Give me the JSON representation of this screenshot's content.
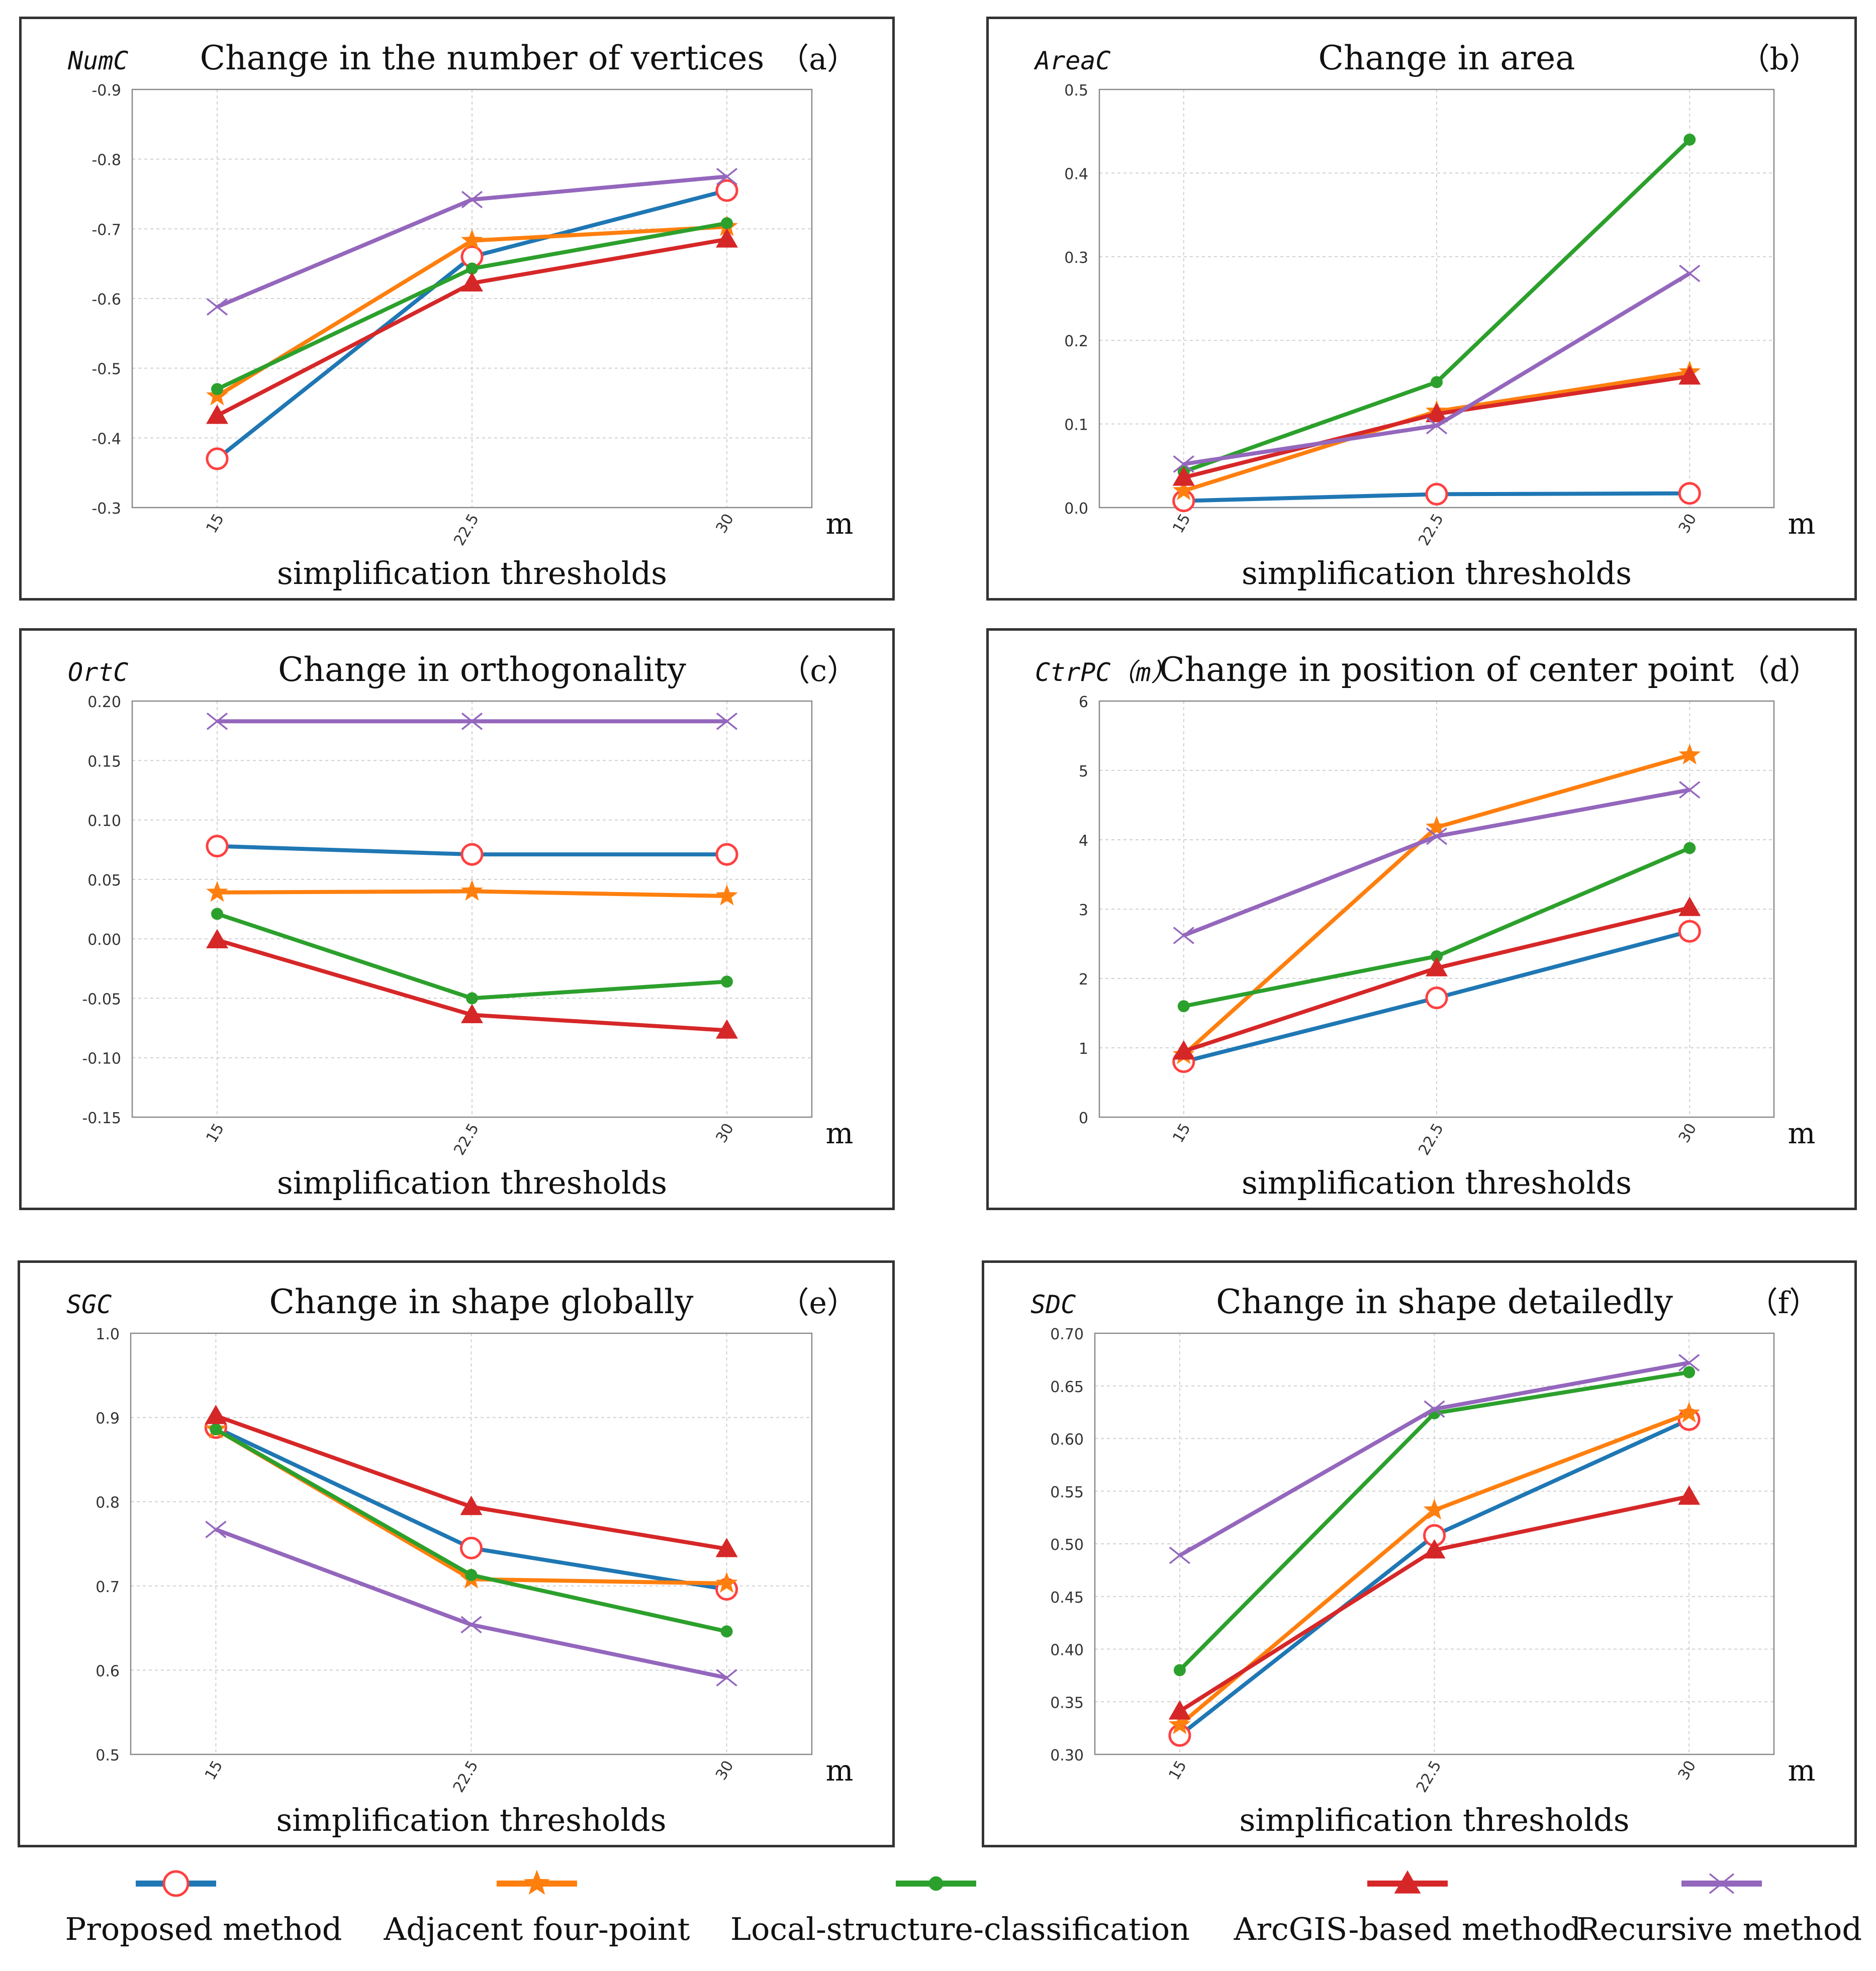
{
  "common": {
    "xlabel": "simplification thresholds",
    "unit": "m",
    "tick_labels": [
      "15",
      "22.5",
      "30"
    ]
  },
  "legend": [
    {
      "name": "Proposed method",
      "color": "#1f77b4",
      "marker": "open-circle",
      "marker_color": "#ff4040"
    },
    {
      "name": "Adjacent four-point",
      "color": "#ff7f0e",
      "marker": "star",
      "marker_color": "#ff7f0e"
    },
    {
      "name": "Local-structure-classification",
      "color": "#2ca02c",
      "marker": "dot",
      "marker_color": "#2ca02c"
    },
    {
      "name": "ArcGIS-based  method",
      "color": "#d62728",
      "marker": "triangle",
      "marker_color": "#d62728"
    },
    {
      "name": "Recursive method",
      "color": "#9467bd",
      "marker": "x",
      "marker_color": "#9467bd"
    }
  ],
  "chart_data": [
    {
      "type": "line",
      "letter": "（a）",
      "ylabel": "NumC",
      "title": "Change in the number of vertices",
      "ylim": [
        -0.3,
        -0.9
      ],
      "yticks": [
        -0.3,
        -0.4,
        -0.5,
        -0.6,
        -0.7,
        -0.8,
        -0.9
      ],
      "ytick_labels": [
        "-0.3",
        "-0.4",
        "-0.5",
        "-0.6",
        "-0.7",
        "-0.8",
        "-0.9"
      ],
      "x": [
        15,
        22.5,
        30
      ],
      "series": [
        {
          "name": "Proposed method",
          "values": [
            -0.37,
            -0.66,
            -0.755
          ]
        },
        {
          "name": "Adjacent four-point",
          "values": [
            -0.46,
            -0.683,
            -0.703
          ]
        },
        {
          "name": "Local-structure-classification",
          "values": [
            -0.47,
            -0.643,
            -0.708
          ]
        },
        {
          "name": "ArcGIS-based  method",
          "values": [
            -0.432,
            -0.622,
            -0.685
          ]
        },
        {
          "name": "Recursive method",
          "values": [
            -0.588,
            -0.742,
            -0.775
          ]
        }
      ]
    },
    {
      "type": "line",
      "letter": "（b）",
      "ylabel": "AreaC",
      "title": "Change in area",
      "ylim": [
        0,
        0.5
      ],
      "yticks": [
        0,
        0.1,
        0.2,
        0.3,
        0.4,
        0.5
      ],
      "ytick_labels": [
        "0.0",
        "0.1",
        "0.2",
        "0.3",
        "0.4",
        "0.5"
      ],
      "x": [
        15,
        22.5,
        30
      ],
      "series": [
        {
          "name": "Proposed method",
          "values": [
            0.008,
            0.016,
            0.017
          ]
        },
        {
          "name": "Adjacent four-point",
          "values": [
            0.02,
            0.115,
            0.162
          ]
        },
        {
          "name": "Local-structure-classification",
          "values": [
            0.043,
            0.15,
            0.44
          ]
        },
        {
          "name": "ArcGIS-based  method",
          "values": [
            0.036,
            0.112,
            0.157
          ]
        },
        {
          "name": "Recursive method",
          "values": [
            0.052,
            0.098,
            0.28
          ]
        }
      ]
    },
    {
      "type": "line",
      "letter": "（c）",
      "ylabel": "OrtC",
      "title": "Change in orthogonality",
      "ylim": [
        -0.15,
        0.2
      ],
      "yticks": [
        -0.15,
        -0.1,
        -0.05,
        0,
        0.05,
        0.1,
        0.15,
        0.2
      ],
      "ytick_labels": [
        "-0.15",
        "-0.10",
        "-0.05",
        "0.00",
        "0.05",
        "0.10",
        "0.15",
        "0.20"
      ],
      "x": [
        15,
        22.5,
        30
      ],
      "series": [
        {
          "name": "Proposed method",
          "values": [
            0.078,
            0.071,
            0.071
          ]
        },
        {
          "name": "Adjacent four-point",
          "values": [
            0.039,
            0.04,
            0.036
          ]
        },
        {
          "name": "Local-structure-classification",
          "values": [
            0.021,
            -0.05,
            -0.036
          ]
        },
        {
          "name": "ArcGIS-based  method",
          "values": [
            -0.001,
            -0.064,
            -0.077
          ]
        },
        {
          "name": "Recursive method",
          "values": [
            0.183,
            0.183,
            0.183
          ]
        }
      ]
    },
    {
      "type": "line",
      "letter": "（d）",
      "ylabel": "CtrPC（m）",
      "title": "Change in position of center point",
      "ylim": [
        0,
        6
      ],
      "yticks": [
        0,
        1,
        2,
        3,
        4,
        5,
        6
      ],
      "ytick_labels": [
        "0",
        "1",
        "2",
        "3",
        "4",
        "5",
        "6"
      ],
      "x": [
        15,
        22.5,
        30
      ],
      "series": [
        {
          "name": "Proposed method",
          "values": [
            0.8,
            1.72,
            2.68
          ]
        },
        {
          "name": "Adjacent four-point",
          "values": [
            0.9,
            4.18,
            5.22
          ]
        },
        {
          "name": "Local-structure-classification",
          "values": [
            1.6,
            2.32,
            3.88
          ]
        },
        {
          "name": "ArcGIS-based  method",
          "values": [
            0.95,
            2.15,
            3.02
          ]
        },
        {
          "name": "Recursive method",
          "values": [
            2.62,
            4.05,
            4.72
          ]
        }
      ]
    },
    {
      "type": "line",
      "letter": "（e）",
      "ylabel": "SGC",
      "title": "Change in shape globally",
      "ylim": [
        0.5,
        1.0
      ],
      "yticks": [
        0.5,
        0.6,
        0.7,
        0.8,
        0.9,
        1.0
      ],
      "ytick_labels": [
        "0.5",
        "0.6",
        "0.7",
        "0.8",
        "0.9",
        "1.0"
      ],
      "x": [
        15,
        22.5,
        30
      ],
      "series": [
        {
          "name": "Proposed method",
          "values": [
            0.888,
            0.745,
            0.696
          ]
        },
        {
          "name": "Adjacent four-point",
          "values": [
            0.886,
            0.708,
            0.703
          ]
        },
        {
          "name": "Local-structure-classification",
          "values": [
            0.886,
            0.713,
            0.646
          ]
        },
        {
          "name": "ArcGIS-based  method",
          "values": [
            0.902,
            0.794,
            0.744
          ]
        },
        {
          "name": "Recursive method",
          "values": [
            0.767,
            0.654,
            0.591
          ]
        }
      ]
    },
    {
      "type": "line",
      "letter": "（f）",
      "ylabel": "SDC",
      "title": "Change in shape detailedly",
      "ylim": [
        0.3,
        0.7
      ],
      "yticks": [
        0.3,
        0.35,
        0.4,
        0.45,
        0.5,
        0.55,
        0.6,
        0.65,
        0.7
      ],
      "ytick_labels": [
        "0.30",
        "0.35",
        "0.40",
        "0.45",
        "0.50",
        "0.55",
        "0.60",
        "0.65",
        "0.70"
      ],
      "x": [
        15,
        22.5,
        30
      ],
      "series": [
        {
          "name": "Proposed method",
          "values": [
            0.318,
            0.508,
            0.618
          ]
        },
        {
          "name": "Adjacent four-point",
          "values": [
            0.328,
            0.532,
            0.624
          ]
        },
        {
          "name": "Local-structure-classification",
          "values": [
            0.38,
            0.624,
            0.663
          ]
        },
        {
          "name": "ArcGIS-based  method",
          "values": [
            0.341,
            0.494,
            0.545
          ]
        },
        {
          "name": "Recursive method",
          "values": [
            0.489,
            0.628,
            0.672
          ]
        }
      ]
    }
  ]
}
